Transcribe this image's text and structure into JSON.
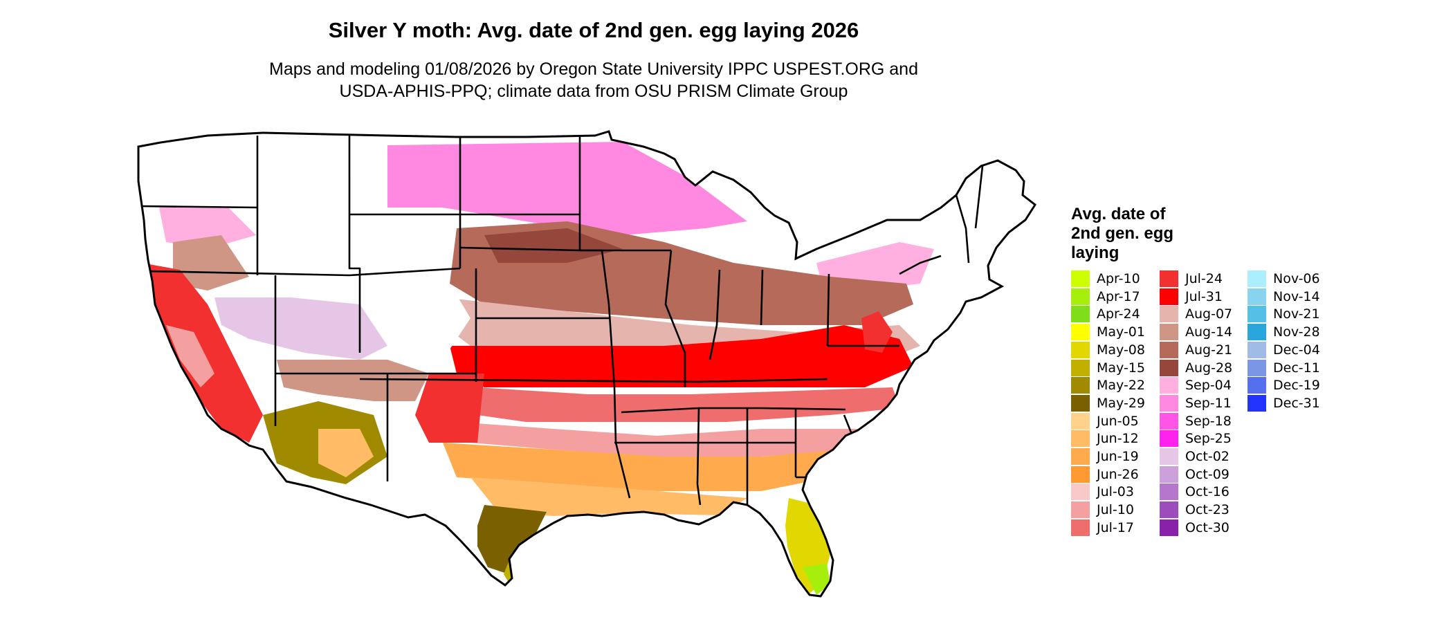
{
  "title": "Silver Y moth: Avg. date of 2nd gen. egg laying 2026",
  "subtitle": [
    "Maps and modeling 01/08/2026 by Oregon State University IPPC USPEST.ORG and",
    "USDA-APHIS-PPQ; climate data from OSU PRISM Climate Group"
  ],
  "legend": {
    "title": [
      "Avg. date of",
      "2nd gen. egg",
      "laying"
    ],
    "items": [
      {
        "label": "Apr-10",
        "color": "#ccff00"
      },
      {
        "label": "Apr-17",
        "color": "#a6ee0c"
      },
      {
        "label": "Apr-24",
        "color": "#80dd1a"
      },
      {
        "label": "May-01",
        "color": "#ffff00"
      },
      {
        "label": "May-08",
        "color": "#e0d800"
      },
      {
        "label": "May-15",
        "color": "#c2b000"
      },
      {
        "label": "May-22",
        "color": "#a08a00"
      },
      {
        "label": "May-29",
        "color": "#7a6000"
      },
      {
        "label": "Jun-05",
        "color": "#ffd28c"
      },
      {
        "label": "Jun-12",
        "color": "#ffbb66"
      },
      {
        "label": "Jun-19",
        "color": "#ffab4d"
      },
      {
        "label": "Jun-26",
        "color": "#ff9a33"
      },
      {
        "label": "Jul-03",
        "color": "#f7c9c9"
      },
      {
        "label": "Jul-10",
        "color": "#f4a0a0"
      },
      {
        "label": "Jul-17",
        "color": "#f06d6d"
      },
      {
        "label": "Jul-24",
        "color": "#f23030"
      },
      {
        "label": "Jul-31",
        "color": "#ff0000"
      },
      {
        "label": "Aug-07",
        "color": "#e5b5ad"
      },
      {
        "label": "Aug-14",
        "color": "#cf9585"
      },
      {
        "label": "Aug-21",
        "color": "#b56a5a"
      },
      {
        "label": "Aug-28",
        "color": "#94473a"
      },
      {
        "label": "Sep-04",
        "color": "#ffb0e0"
      },
      {
        "label": "Sep-11",
        "color": "#ff88e0"
      },
      {
        "label": "Sep-18",
        "color": "#ff55e6"
      },
      {
        "label": "Sep-25",
        "color": "#ff22ee"
      },
      {
        "label": "Oct-02",
        "color": "#e6c6e6"
      },
      {
        "label": "Oct-09",
        "color": "#cca0da"
      },
      {
        "label": "Oct-16",
        "color": "#b577cc"
      },
      {
        "label": "Oct-23",
        "color": "#9d4dbb"
      },
      {
        "label": "Oct-30",
        "color": "#8822aa"
      },
      {
        "label": "Nov-06",
        "color": "#aaeeff"
      },
      {
        "label": "Nov-14",
        "color": "#88d4f0"
      },
      {
        "label": "Nov-21",
        "color": "#55bfe6"
      },
      {
        "label": "Nov-28",
        "color": "#2aa6dd"
      },
      {
        "label": "Dec-04",
        "color": "#a0bce6"
      },
      {
        "label": "Dec-11",
        "color": "#7c96e6"
      },
      {
        "label": "Dec-19",
        "color": "#5570ee"
      },
      {
        "label": "Dec-31",
        "color": "#2233ff"
      }
    ]
  }
}
